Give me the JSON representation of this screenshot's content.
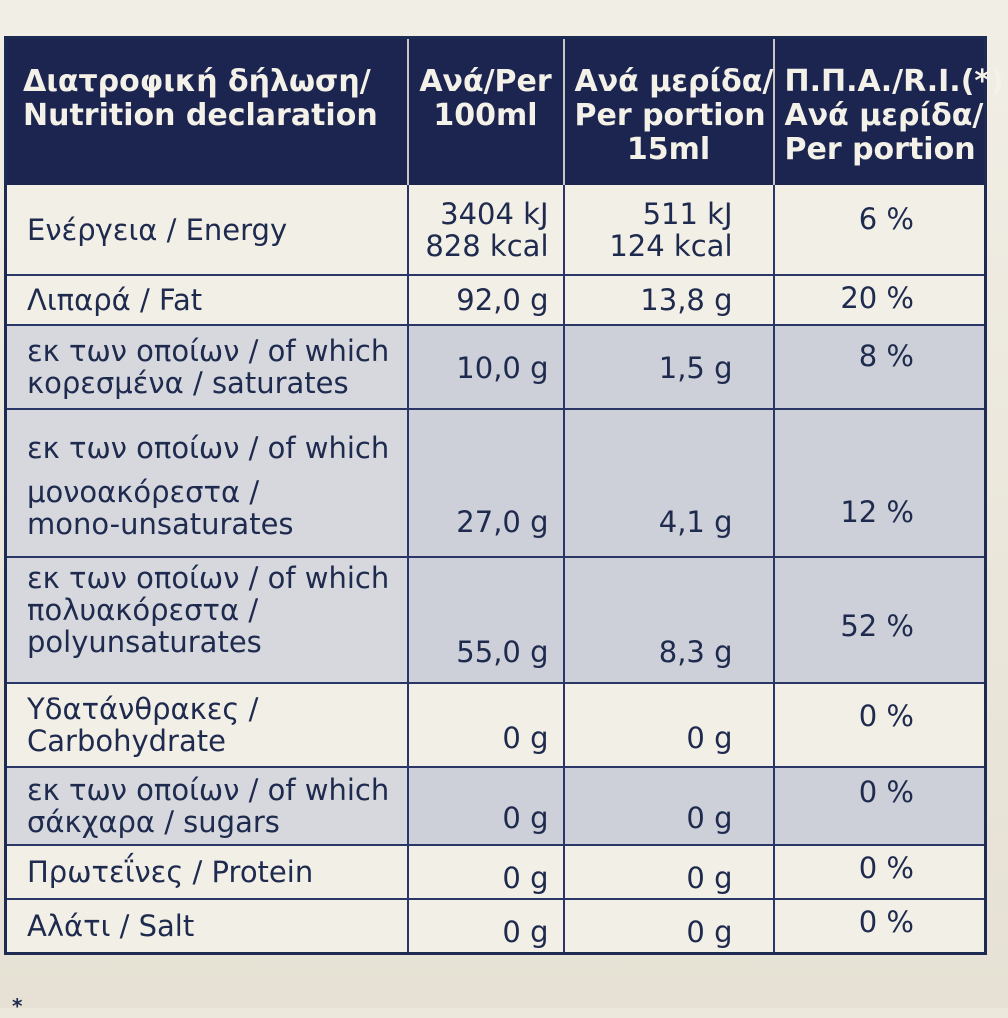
{
  "table": {
    "headers": [
      [
        "Διατροφική δήλωση/",
        "Nutrition declaration"
      ],
      [
        "Ανά/Per",
        "100ml"
      ],
      [
        "Ανά μερίδα/",
        "Per portion",
        "15ml"
      ],
      [
        "Π.Π.Α./R.I.(*)",
        "Ανά μερίδα/",
        "Per portion"
      ]
    ],
    "rows": [
      {
        "name": [
          "Ενέργεια / Energy"
        ],
        "per100": [
          "3404 kJ",
          "828 kcal"
        ],
        "portion": [
          "511 kJ",
          "124 kcal"
        ],
        "ri": "6 %"
      },
      {
        "name": [
          "Λιπαρά / Fat"
        ],
        "per100": [
          "92,0 g"
        ],
        "portion": [
          "13,8 g"
        ],
        "ri": "20 %"
      },
      {
        "name": [
          "εκ των οποίων / of which",
          "κορεσμένα / saturates"
        ],
        "per100": [
          "10,0 g"
        ],
        "portion": [
          "1,5 g"
        ],
        "ri": "8 %"
      },
      {
        "name": [
          "εκ των οποίων / of which",
          "μονοακόρεστα /",
          "mono-unsaturates"
        ],
        "per100": [
          "27,0 g"
        ],
        "portion": [
          "4,1 g"
        ],
        "ri": "12 %"
      },
      {
        "name": [
          "εκ των οποίων / of which",
          "πολυακόρεστα /",
          "polyunsaturates"
        ],
        "per100": [
          "55,0 g"
        ],
        "portion": [
          "8,3 g"
        ],
        "ri": "52 %"
      },
      {
        "name": [
          "Υδατάνθρακες /",
          "Carbohydrate"
        ],
        "per100": [
          "0 g"
        ],
        "portion": [
          "0 g"
        ],
        "ri": "0 %"
      },
      {
        "name": [
          "εκ των οποίων / of which",
          "σάκχαρα / sugars"
        ],
        "per100": [
          "0 g"
        ],
        "portion": [
          "0 g"
        ],
        "ri": "0 %"
      },
      {
        "name": [
          "Πρωτεΐνες / Protein"
        ],
        "per100": [
          "0 g"
        ],
        "portion": [
          "0 g"
        ],
        "ri": "0 %"
      },
      {
        "name": [
          "Αλάτι / Salt"
        ],
        "per100": [
          "0 g"
        ],
        "portion": [
          "0 g"
        ],
        "ri": "0 %"
      }
    ]
  },
  "footnote": "*",
  "colors": {
    "header_bg": "#1b2550",
    "text": "#1e2a4e",
    "row_light": "#f2efe6",
    "row_shade": "#cdd0d8"
  }
}
